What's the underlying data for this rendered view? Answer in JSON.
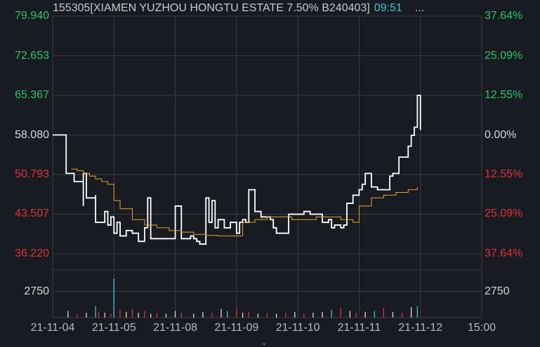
{
  "header": {
    "symbol_title": "155305[XIAMEN YUZHOU HONGTU ESTATE 7.50% B240403]",
    "time": "09:51",
    "more": "..."
  },
  "colors": {
    "background": "#181b21",
    "grid": "#3a3d44",
    "up": "#2ec46b",
    "down": "#e0333a",
    "neutral": "#d8d8d8",
    "price_line": "#ffffff",
    "avg_line": "#e6a42c",
    "volume_cyan": "#3fc6d3"
  },
  "chart_data": {
    "type": "line",
    "price_axis": {
      "ticks": [
        "79.940",
        "72.653",
        "65.367",
        "58.080",
        "50.793",
        "43.507",
        "36.220"
      ],
      "tick_values": [
        79.94,
        72.653,
        65.367,
        58.08,
        50.793,
        43.507,
        36.22
      ],
      "ylim": [
        36.22,
        79.94
      ],
      "reference": 58.08
    },
    "percent_axis": {
      "ticks": [
        "37.64%",
        "25.09%",
        "12.55%",
        "0.00%",
        "12.55%",
        "25.09%",
        "37.64%"
      ]
    },
    "volume_axis": {
      "ticks": [
        "2750"
      ],
      "max": 5000
    },
    "x_axis": {
      "ticks": [
        "21-11-04",
        "21-11-05",
        "21-11-08",
        "21-11-09",
        "21-11-10",
        "21-11-11",
        "21-11-12",
        "15:00"
      ],
      "tick_positions": [
        0,
        1,
        2,
        3,
        4,
        5,
        6,
        7
      ],
      "xlim": [
        0,
        7
      ]
    },
    "series": [
      {
        "name": "",
        "role": "price",
        "x": [
          0.0,
          0.2,
          0.22,
          0.3,
          0.35,
          0.5,
          0.5,
          0.55,
          0.55,
          0.7,
          0.7,
          0.85,
          0.9,
          0.95,
          1.0,
          1.05,
          1.1,
          1.2,
          1.25,
          1.3,
          1.35,
          1.4,
          1.5,
          1.55,
          1.6,
          1.7,
          2.0,
          2.1,
          2.15,
          2.25,
          2.3,
          2.35,
          2.4,
          2.5,
          2.55,
          2.6,
          2.65,
          2.7,
          2.8,
          2.9,
          3.0,
          3.05,
          3.1,
          3.15,
          3.2,
          3.25,
          3.3,
          3.4,
          3.45,
          3.5,
          3.55,
          3.6,
          3.65,
          3.7,
          3.75,
          3.85,
          4.0,
          4.1,
          4.2,
          4.3,
          4.4,
          4.5,
          4.55,
          4.6,
          4.7,
          4.75,
          4.8,
          4.9,
          5.0,
          5.05,
          5.1,
          5.2,
          5.3,
          5.4,
          5.5,
          5.55,
          5.65,
          5.8,
          5.85,
          5.9,
          5.95,
          6.0
        ],
        "values": [
          58.08,
          58.08,
          51.0,
          51.0,
          49.5,
          45.0,
          51.0,
          49.0,
          46.5,
          47.0,
          42.0,
          44.0,
          41.5,
          43.0,
          40.0,
          42.0,
          39.5,
          40.5,
          40.5,
          40.0,
          40.0,
          38.5,
          41.0,
          46.5,
          39.0,
          39.0,
          45.0,
          39.0,
          39.0,
          39.5,
          39.0,
          38.5,
          38.0,
          46.5,
          42.0,
          46.0,
          41.0,
          42.5,
          41.0,
          42.0,
          40.0,
          42.0,
          42.5,
          42.0,
          48.0,
          48.0,
          44.0,
          43.0,
          43.0,
          43.0,
          42.5,
          41.0,
          40.0,
          40.0,
          40.0,
          43.5,
          43.5,
          44.0,
          43.5,
          43.5,
          42.0,
          42.5,
          41.0,
          41.5,
          41.0,
          41.5,
          45.5,
          47.0,
          48.0,
          49.0,
          51.0,
          48.5,
          48.0,
          48.0,
          50.5,
          51.0,
          54.0,
          56.0,
          58.0,
          59.5,
          65.367,
          59.0
        ]
      },
      {
        "name": "",
        "role": "average",
        "x": [
          0.3,
          0.4,
          0.5,
          0.6,
          0.7,
          0.8,
          0.9,
          1.0,
          1.1,
          1.3,
          1.5,
          1.7,
          1.9,
          2.1,
          2.3,
          2.5,
          2.7,
          2.9,
          3.1,
          3.3,
          3.5,
          3.7,
          3.9,
          4.1,
          4.3,
          4.5,
          4.7,
          4.9,
          5.0,
          5.2,
          5.4,
          5.6,
          5.8,
          5.95
        ],
        "values": [
          51.8,
          51.5,
          51.0,
          50.5,
          50.0,
          49.5,
          49.0,
          46.0,
          44.5,
          42.5,
          41.5,
          41.0,
          40.5,
          40.2,
          39.8,
          39.6,
          39.5,
          39.5,
          42.0,
          42.5,
          43.0,
          43.0,
          42.5,
          42.5,
          43.0,
          43.0,
          42.5,
          42.0,
          45.0,
          46.5,
          47.0,
          47.5,
          48.0,
          48.5
        ]
      }
    ],
    "volume": [
      {
        "x": 0.25,
        "v": 700,
        "c": "neutral"
      },
      {
        "x": 0.4,
        "v": 400,
        "c": "down"
      },
      {
        "x": 0.55,
        "v": 500,
        "c": "neutral"
      },
      {
        "x": 0.7,
        "v": 1200,
        "c": "up"
      },
      {
        "x": 0.75,
        "v": 600,
        "c": "down"
      },
      {
        "x": 0.85,
        "v": 500,
        "c": "neutral"
      },
      {
        "x": 0.95,
        "v": 400,
        "c": "down"
      },
      {
        "x": 1.0,
        "v": 4100,
        "c": "up"
      },
      {
        "x": 1.1,
        "v": 800,
        "c": "down"
      },
      {
        "x": 1.2,
        "v": 600,
        "c": "neutral"
      },
      {
        "x": 1.3,
        "v": 900,
        "c": "down"
      },
      {
        "x": 1.4,
        "v": 500,
        "c": "neutral"
      },
      {
        "x": 1.5,
        "v": 700,
        "c": "down"
      },
      {
        "x": 1.6,
        "v": 400,
        "c": "neutral"
      },
      {
        "x": 1.7,
        "v": 500,
        "c": "down"
      },
      {
        "x": 1.85,
        "v": 400,
        "c": "neutral"
      },
      {
        "x": 2.0,
        "v": 700,
        "c": "neutral"
      },
      {
        "x": 2.1,
        "v": 500,
        "c": "down"
      },
      {
        "x": 2.3,
        "v": 400,
        "c": "neutral"
      },
      {
        "x": 2.45,
        "v": 600,
        "c": "neutral"
      },
      {
        "x": 2.6,
        "v": 500,
        "c": "down"
      },
      {
        "x": 2.75,
        "v": 900,
        "c": "neutral"
      },
      {
        "x": 2.85,
        "v": 700,
        "c": "up"
      },
      {
        "x": 3.0,
        "v": 1000,
        "c": "down"
      },
      {
        "x": 3.1,
        "v": 500,
        "c": "neutral"
      },
      {
        "x": 3.2,
        "v": 600,
        "c": "down"
      },
      {
        "x": 3.35,
        "v": 400,
        "c": "neutral"
      },
      {
        "x": 3.5,
        "v": 500,
        "c": "down"
      },
      {
        "x": 3.65,
        "v": 400,
        "c": "neutral"
      },
      {
        "x": 3.8,
        "v": 500,
        "c": "down"
      },
      {
        "x": 3.95,
        "v": 600,
        "c": "neutral"
      },
      {
        "x": 4.1,
        "v": 400,
        "c": "down"
      },
      {
        "x": 4.25,
        "v": 500,
        "c": "neutral"
      },
      {
        "x": 4.4,
        "v": 600,
        "c": "neutral"
      },
      {
        "x": 4.55,
        "v": 800,
        "c": "up"
      },
      {
        "x": 4.7,
        "v": 1000,
        "c": "down"
      },
      {
        "x": 4.85,
        "v": 700,
        "c": "neutral"
      },
      {
        "x": 4.95,
        "v": 500,
        "c": "down"
      },
      {
        "x": 5.1,
        "v": 600,
        "c": "neutral"
      },
      {
        "x": 5.25,
        "v": 700,
        "c": "up"
      },
      {
        "x": 5.4,
        "v": 1000,
        "c": "down"
      },
      {
        "x": 5.55,
        "v": 600,
        "c": "neutral"
      },
      {
        "x": 5.7,
        "v": 500,
        "c": "down"
      },
      {
        "x": 5.85,
        "v": 1100,
        "c": "neutral"
      },
      {
        "x": 5.95,
        "v": 1200,
        "c": "up"
      }
    ]
  }
}
